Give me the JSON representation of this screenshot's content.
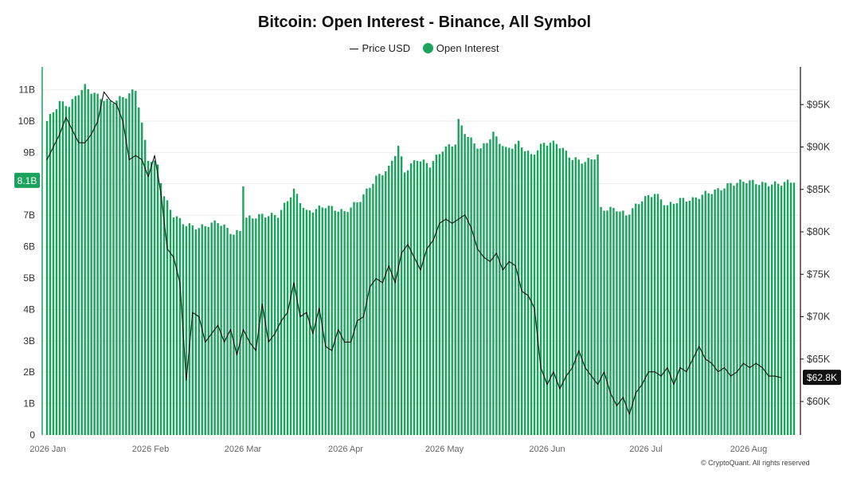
{
  "chart_data": {
    "type": "bar",
    "title": "Bitcoin: Open Interest - Binance, All Symbol",
    "legend": {
      "placement": "top-center",
      "items": [
        {
          "name": "Price USD",
          "marker": "line"
        },
        {
          "name": "Open Interest",
          "marker": "dot"
        }
      ]
    },
    "grid": true,
    "colors": {
      "open_interest": "#1aa35d",
      "price": "#111111",
      "current_badge": "#1aa35d",
      "price_badge": "#111111"
    },
    "x_labels": [
      "2026 Jan",
      "2026 Feb",
      "2026 Mar",
      "2026 Apr",
      "2026 May",
      "2026 Jun",
      "2026 Jul",
      "2026 Aug"
    ],
    "y_left": {
      "ticks": [
        "0",
        "1B",
        "2B",
        "3B",
        "4B",
        "5B",
        "6B",
        "7B",
        "8B",
        "9B",
        "10B",
        "11B"
      ],
      "range": [
        0,
        12000000000
      ]
    },
    "y_right": {
      "ticks": [
        "$60K",
        "$65K",
        "$70K",
        "$75K",
        "$80K",
        "$85K",
        "$90K",
        "$95K"
      ],
      "range": [
        56000,
        98800
      ]
    },
    "current_open_interest_label": "8.1B",
    "current_price_label": "$62.8K",
    "x_start": "2026-01-01",
    "x_end": "2026-08-25",
    "oi_keypoints": [
      [
        "2026-01-01",
        10.0
      ],
      [
        "2026-01-05",
        10.6
      ],
      [
        "2026-01-08",
        10.5
      ],
      [
        "2026-01-11",
        10.9
      ],
      [
        "2026-01-13",
        11.1
      ],
      [
        "2026-01-17",
        10.8
      ],
      [
        "2026-01-21",
        10.6
      ],
      [
        "2026-01-26",
        10.8
      ],
      [
        "2026-01-29",
        11.0
      ],
      [
        "2026-01-30",
        10.5
      ],
      [
        "2026-01-31",
        9.9
      ],
      [
        "2026-02-02",
        8.8
      ],
      [
        "2026-02-05",
        8.6
      ],
      [
        "2026-02-07",
        7.6
      ],
      [
        "2026-02-10",
        7.0
      ],
      [
        "2026-02-14",
        6.7
      ],
      [
        "2026-02-18",
        6.6
      ],
      [
        "2026-02-24",
        6.8
      ],
      [
        "2026-03-01",
        6.4
      ],
      [
        "2026-03-03",
        6.5
      ],
      [
        "2026-03-04",
        8.0
      ],
      [
        "2026-03-05",
        6.9
      ],
      [
        "2026-03-10",
        7.0
      ],
      [
        "2026-03-15",
        7.0
      ],
      [
        "2026-03-20",
        7.8
      ],
      [
        "2026-03-24",
        7.1
      ],
      [
        "2026-03-30",
        7.3
      ],
      [
        "2026-04-05",
        7.1
      ],
      [
        "2026-04-10",
        7.5
      ],
      [
        "2026-04-15",
        8.2
      ],
      [
        "2026-04-19",
        8.5
      ],
      [
        "2026-04-22",
        9.2
      ],
      [
        "2026-04-24",
        8.4
      ],
      [
        "2026-04-28",
        8.8
      ],
      [
        "2026-05-02",
        8.6
      ],
      [
        "2026-05-06",
        9.1
      ],
      [
        "2026-05-10",
        9.3
      ],
      [
        "2026-05-11",
        10.0
      ],
      [
        "2026-05-14",
        9.5
      ],
      [
        "2026-05-18",
        9.1
      ],
      [
        "2026-05-22",
        9.6
      ],
      [
        "2026-05-26",
        9.1
      ],
      [
        "2026-05-30",
        9.3
      ],
      [
        "2026-06-03",
        8.9
      ],
      [
        "2026-06-07",
        9.3
      ],
      [
        "2026-06-11",
        9.3
      ],
      [
        "2026-06-16",
        8.8
      ],
      [
        "2026-06-20",
        8.7
      ],
      [
        "2026-06-24",
        8.9
      ],
      [
        "2026-06-25",
        7.2
      ],
      [
        "2026-06-30",
        7.2
      ],
      [
        "2026-07-03",
        7.0
      ],
      [
        "2026-07-08",
        7.5
      ],
      [
        "2026-07-12",
        7.7
      ],
      [
        "2026-07-16",
        7.3
      ],
      [
        "2026-07-20",
        7.5
      ],
      [
        "2026-07-24",
        7.5
      ],
      [
        "2026-07-28",
        7.7
      ],
      [
        "2026-08-01",
        7.8
      ],
      [
        "2026-08-05",
        8.0
      ],
      [
        "2026-08-10",
        8.1
      ],
      [
        "2026-08-15",
        8.0
      ],
      [
        "2026-08-20",
        8.0
      ],
      [
        "2026-08-25",
        8.1
      ]
    ],
    "price_points": [
      [
        "2026-01-01",
        88500
      ],
      [
        "2026-01-03",
        90000
      ],
      [
        "2026-01-05",
        91500
      ],
      [
        "2026-01-07",
        93500
      ],
      [
        "2026-01-09",
        92000
      ],
      [
        "2026-01-11",
        90500
      ],
      [
        "2026-01-13",
        90500
      ],
      [
        "2026-01-15",
        91500
      ],
      [
        "2026-01-17",
        93000
      ],
      [
        "2026-01-19",
        96500
      ],
      [
        "2026-01-21",
        95500
      ],
      [
        "2026-01-23",
        95000
      ],
      [
        "2026-01-25",
        93000
      ],
      [
        "2026-01-27",
        88500
      ],
      [
        "2026-01-29",
        89000
      ],
      [
        "2026-01-31",
        88500
      ],
      [
        "2026-02-02",
        86500
      ],
      [
        "2026-02-04",
        89000
      ],
      [
        "2026-02-06",
        84500
      ],
      [
        "2026-02-08",
        78000
      ],
      [
        "2026-02-10",
        77000
      ],
      [
        "2026-02-12",
        74000
      ],
      [
        "2026-02-14",
        62500
      ],
      [
        "2026-02-16",
        70500
      ],
      [
        "2026-02-18",
        70000
      ],
      [
        "2026-02-20",
        67000
      ],
      [
        "2026-02-22",
        68000
      ],
      [
        "2026-02-24",
        69000
      ],
      [
        "2026-02-26",
        67000
      ],
      [
        "2026-02-28",
        68500
      ],
      [
        "2026-03-02",
        65500
      ],
      [
        "2026-03-04",
        68500
      ],
      [
        "2026-03-06",
        67000
      ],
      [
        "2026-03-08",
        66000
      ],
      [
        "2026-03-10",
        71500
      ],
      [
        "2026-03-12",
        67000
      ],
      [
        "2026-03-14",
        68000
      ],
      [
        "2026-03-16",
        69500
      ],
      [
        "2026-03-18",
        70500
      ],
      [
        "2026-03-20",
        74000
      ],
      [
        "2026-03-22",
        70000
      ],
      [
        "2026-03-24",
        70500
      ],
      [
        "2026-03-26",
        68000
      ],
      [
        "2026-03-28",
        71000
      ],
      [
        "2026-03-30",
        66500
      ],
      [
        "2026-04-01",
        66000
      ],
      [
        "2026-04-03",
        68500
      ],
      [
        "2026-04-05",
        67000
      ],
      [
        "2026-04-07",
        67000
      ],
      [
        "2026-04-09",
        69500
      ],
      [
        "2026-04-11",
        70000
      ],
      [
        "2026-04-13",
        73500
      ],
      [
        "2026-04-15",
        74500
      ],
      [
        "2026-04-17",
        74000
      ],
      [
        "2026-04-19",
        76000
      ],
      [
        "2026-04-21",
        74000
      ],
      [
        "2026-04-23",
        77500
      ],
      [
        "2026-04-25",
        78500
      ],
      [
        "2026-04-27",
        77000
      ],
      [
        "2026-04-29",
        75500
      ],
      [
        "2026-05-01",
        78000
      ],
      [
        "2026-05-03",
        79000
      ],
      [
        "2026-05-05",
        81000
      ],
      [
        "2026-05-07",
        81500
      ],
      [
        "2026-05-09",
        81000
      ],
      [
        "2026-05-11",
        81500
      ],
      [
        "2026-05-13",
        82000
      ],
      [
        "2026-05-15",
        80500
      ],
      [
        "2026-05-17",
        78000
      ],
      [
        "2026-05-19",
        77000
      ],
      [
        "2026-05-21",
        76500
      ],
      [
        "2026-05-23",
        77500
      ],
      [
        "2026-05-25",
        75500
      ],
      [
        "2026-05-27",
        76500
      ],
      [
        "2026-05-29",
        76000
      ],
      [
        "2026-05-31",
        73000
      ],
      [
        "2026-06-02",
        72500
      ],
      [
        "2026-06-04",
        71000
      ],
      [
        "2026-06-06",
        64000
      ],
      [
        "2026-06-08",
        62000
      ],
      [
        "2026-06-10",
        63500
      ],
      [
        "2026-06-12",
        61500
      ],
      [
        "2026-06-14",
        63000
      ],
      [
        "2026-06-16",
        64000
      ],
      [
        "2026-06-18",
        66000
      ],
      [
        "2026-06-20",
        64000
      ],
      [
        "2026-06-22",
        63000
      ],
      [
        "2026-06-24",
        62000
      ],
      [
        "2026-06-26",
        63500
      ],
      [
        "2026-06-28",
        61000
      ],
      [
        "2026-06-30",
        59500
      ],
      [
        "2026-07-02",
        60500
      ],
      [
        "2026-07-04",
        58500
      ],
      [
        "2026-07-06",
        61000
      ],
      [
        "2026-07-08",
        62000
      ],
      [
        "2026-07-10",
        63500
      ],
      [
        "2026-07-12",
        63500
      ],
      [
        "2026-07-14",
        63000
      ],
      [
        "2026-07-16",
        64000
      ],
      [
        "2026-07-18",
        62000
      ],
      [
        "2026-07-20",
        64000
      ],
      [
        "2026-07-22",
        63500
      ],
      [
        "2026-07-24",
        65000
      ],
      [
        "2026-07-26",
        66500
      ],
      [
        "2026-07-28",
        65000
      ],
      [
        "2026-07-30",
        64500
      ],
      [
        "2026-08-01",
        63500
      ],
      [
        "2026-08-03",
        64000
      ],
      [
        "2026-08-05",
        63000
      ],
      [
        "2026-08-07",
        63500
      ],
      [
        "2026-08-09",
        64500
      ],
      [
        "2026-08-11",
        64000
      ],
      [
        "2026-08-13",
        64500
      ],
      [
        "2026-08-15",
        64000
      ],
      [
        "2026-08-17",
        63000
      ],
      [
        "2026-08-19",
        63000
      ],
      [
        "2026-08-21",
        62800
      ]
    ]
  },
  "footer": {
    "copyright": "© CryptoQuant. All rights reserved"
  }
}
